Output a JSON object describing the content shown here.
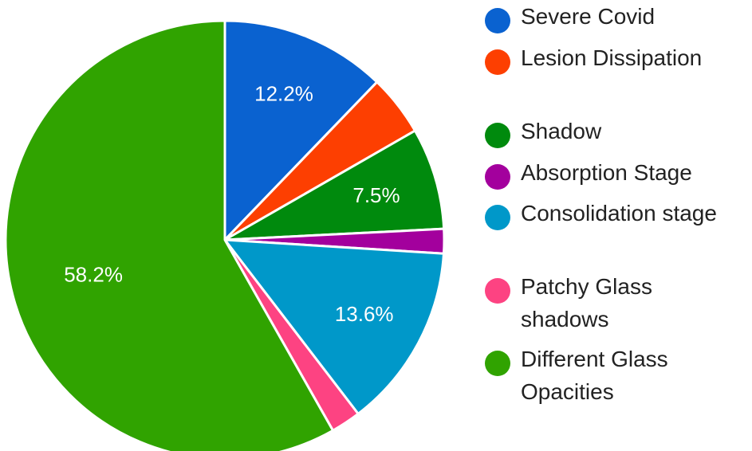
{
  "chart_data": {
    "type": "pie",
    "start_angle_deg": 0,
    "direction": "clockwise",
    "legend_position": "right",
    "slices": [
      {
        "name": "Severe Covid",
        "value": 12.2,
        "label": "12.2%",
        "color": "#0a62d0"
      },
      {
        "name": "Lesion Dissipation",
        "value": 4.5,
        "label": "",
        "color": "#fd3f01"
      },
      {
        "name": "Shadow",
        "value": 7.5,
        "label": "7.5%",
        "color": "#008a0d"
      },
      {
        "name": "Absorption Stage",
        "value": 1.8,
        "label": "",
        "color": "#a3009d"
      },
      {
        "name": "Consolidation stage",
        "value": 13.6,
        "label": "13.6%",
        "color": "#0098c9"
      },
      {
        "name": "Patchy Glass shadows",
        "value": 2.2,
        "label": "",
        "color": "#fd4382"
      },
      {
        "name": "Different Glass Opacities",
        "value": 58.2,
        "label": "58.2%",
        "color": "#30a300"
      }
    ]
  }
}
